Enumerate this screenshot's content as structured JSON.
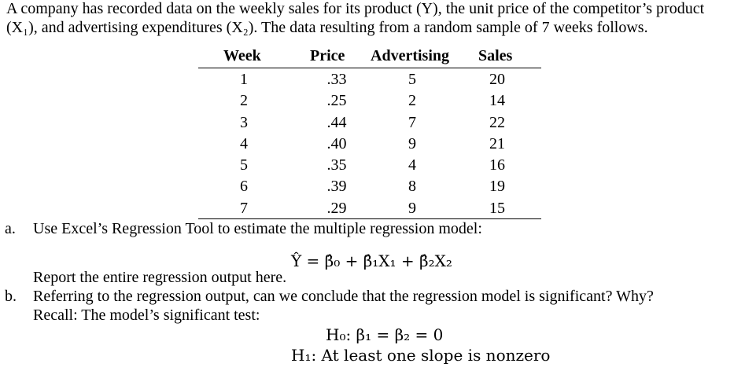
{
  "intro": {
    "line1": "A company has recorded data on the weekly sales for its product (Y), the unit price of the competitor’s product",
    "line2": "(X₁), and advertising expenditures (X₂). The data resulting from a random sample of 7 weeks follows."
  },
  "table": {
    "headers": [
      "Week",
      "Price",
      "Advertising",
      "Sales"
    ],
    "rows": [
      [
        "1",
        ".33",
        "5",
        "20"
      ],
      [
        "2",
        ".25",
        "2",
        "14"
      ],
      [
        "3",
        ".44",
        "7",
        "22"
      ],
      [
        "4",
        ".40",
        "9",
        "21"
      ],
      [
        "5",
        ".35",
        "4",
        "16"
      ],
      [
        "6",
        ".39",
        "8",
        "19"
      ],
      [
        "7",
        ".29",
        "9",
        "15"
      ]
    ]
  },
  "question_a": {
    "label": "a.",
    "text": "Use Excel’s Regression Tool to estimate the multiple regression model:",
    "formula": "Ŷ = β̂₀ + β̂₁X₁ + β̂₂X₂",
    "report": "Report the entire regression output here."
  },
  "question_b": {
    "label": "b.",
    "text": "Referring to the regression output, can we conclude that the regression model is significant? Why?",
    "recall": "Recall: The model’s significant test:",
    "h0": "H₀: β₁ = β₂ = 0",
    "h1": "H₁: At least one slope is nonzero"
  }
}
